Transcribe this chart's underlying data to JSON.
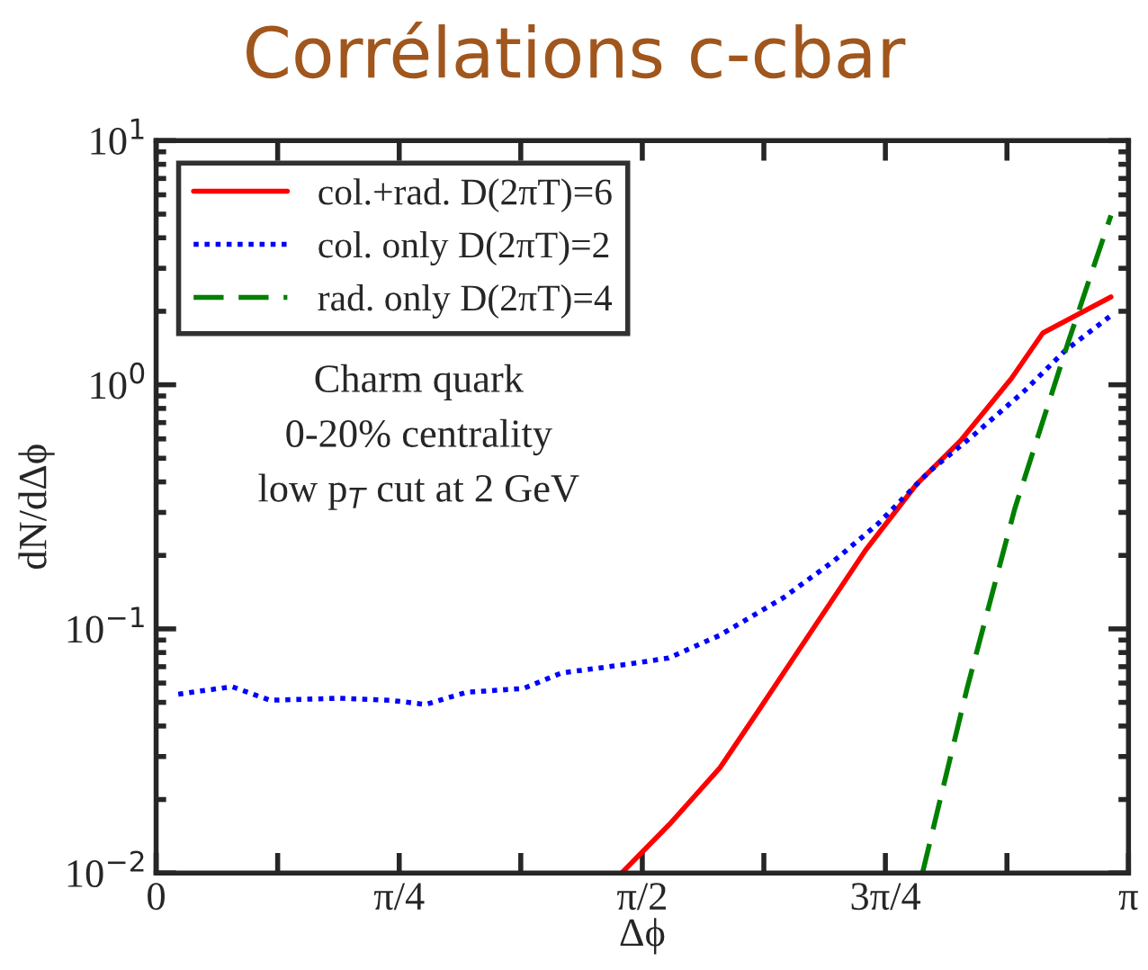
{
  "chart_data": {
    "type": "line",
    "title": "Corrélations c-cbar",
    "xlabel": "Δϕ",
    "ylabel": "dN/dΔϕ",
    "annotations": [
      "Charm quark",
      "0-20% centrality",
      "low p$_{T}$ cut at 2 GeV"
    ],
    "log": "y",
    "legend": "top left",
    "grid": false,
    "xlim": [
      0,
      3.1416
    ],
    "ylim": [
      0.01,
      10
    ],
    "xticks": [
      {
        "value": 0,
        "label": "0"
      },
      {
        "value": 0.3927,
        "label": null
      },
      {
        "value": 0.7854,
        "label": "π/4"
      },
      {
        "value": 1.1781,
        "label": null
      },
      {
        "value": 1.5708,
        "label": "π/2"
      },
      {
        "value": 1.9635,
        "label": null
      },
      {
        "value": 2.3562,
        "label": "3π/4"
      },
      {
        "value": 2.7489,
        "label": null
      },
      {
        "value": 3.1416,
        "label": "π"
      }
    ],
    "yticks": [
      {
        "value": 0.01,
        "label": "10$^{−2}$"
      },
      {
        "value": 0.1,
        "label": "10$^{−1}$"
      },
      {
        "value": 1,
        "label": "10$^{0}$"
      },
      {
        "value": 10,
        "label": "10$^{1}$"
      }
    ],
    "series": [
      {
        "name": "col.+rad. D(2πT)=6",
        "color": "#ff0000",
        "line_style": "solid",
        "x": [
          1.504,
          1.658,
          1.822,
          1.945,
          2.108,
          2.292,
          2.456,
          2.599,
          2.763,
          2.865,
          3.085
        ],
        "values": [
          0.01,
          0.0158,
          0.027,
          0.046,
          0.094,
          0.21,
          0.39,
          0.59,
          1.06,
          1.63,
          2.29
        ]
      },
      {
        "name": "col. only D(2πT)=2",
        "color": "#0000ff",
        "line_style": "dotted",
        "x": [
          0.0716,
          0.245,
          0.368,
          0.593,
          0.757,
          0.87,
          1.003,
          1.187,
          1.31,
          1.535,
          1.656,
          1.82,
          2.026,
          2.19,
          2.333,
          2.497,
          2.64,
          2.804,
          2.937,
          3.085
        ],
        "values": [
          0.054,
          0.058,
          0.051,
          0.052,
          0.051,
          0.049,
          0.055,
          0.057,
          0.066,
          0.072,
          0.076,
          0.094,
          0.134,
          0.19,
          0.27,
          0.44,
          0.62,
          0.94,
          1.38,
          1.92
        ]
      },
      {
        "name": "rad. only D(2πT)=4",
        "color": "#008000",
        "line_style": "dashed",
        "x": [
          2.476,
          2.62,
          2.774,
          2.948,
          3.085
        ],
        "values": [
          0.01,
          0.057,
          0.31,
          1.51,
          4.94
        ]
      }
    ]
  }
}
